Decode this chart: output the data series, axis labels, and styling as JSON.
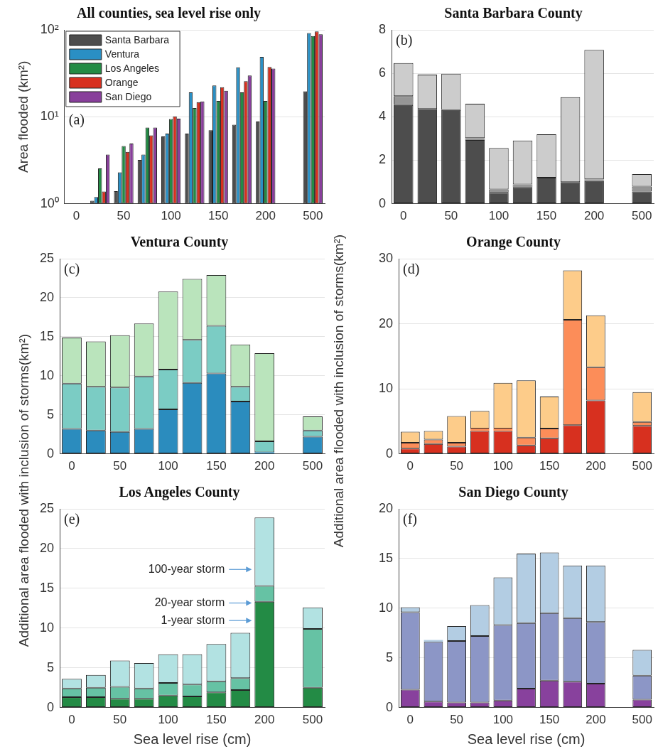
{
  "chart_data": [
    {
      "type": "bar",
      "title": "All counties, sea level rise only",
      "ylabel": "Area flooded (km²)",
      "categories": [
        "0",
        null,
        "50",
        null,
        "100",
        null,
        "150",
        null,
        "200",
        null,
        "500"
      ],
      "log": "y",
      "ylim": [
        1,
        100
      ],
      "yticks": [
        {
          "value": 1,
          "label": "10⁰"
        },
        {
          "value": 10,
          "label": "10¹"
        },
        {
          "value": 100,
          "label": "10²"
        }
      ],
      "grid": "y",
      "legend": "top left",
      "annotations": [
        "(a)"
      ],
      "series": [
        {
          "name": "Santa Barbara",
          "color": "#4d4d4d",
          "values": [
            null,
            1.08,
            1.39,
            3.19,
            5.95,
            6.4,
            7.0,
            8.1,
            8.8,
            null,
            19.6
          ]
        },
        {
          "name": "Ventura",
          "color": "#2a8fc4",
          "values": [
            null,
            1.19,
            2.29,
            3.67,
            6.4,
            19.1,
            22.9,
            37,
            49,
            null,
            92
          ]
        },
        {
          "name": "Los Angeles",
          "color": "#238b45",
          "values": [
            null,
            2.55,
            4.6,
            7.5,
            9.4,
            12.6,
            15.2,
            19.1,
            15.2,
            null,
            85
          ]
        },
        {
          "name": "Orange",
          "color": "#d7301f",
          "values": [
            null,
            1.38,
            3.95,
            6.1,
            10.1,
            14.7,
            21.9,
            25.7,
            37.4,
            null,
            96
          ]
        },
        {
          "name": "San Diego",
          "color": "#883f9b",
          "values": [
            null,
            3.67,
            4.92,
            7.5,
            9.5,
            15.0,
            19.9,
            29.9,
            35.8,
            null,
            89
          ]
        }
      ]
    },
    {
      "type": "bar",
      "title": "Santa Barbara County",
      "categories": [
        "0",
        null,
        "50",
        null,
        "100",
        null,
        "150",
        null,
        "200",
        null,
        "500"
      ],
      "stacked": true,
      "ylim": [
        0,
        8
      ],
      "yticks": [
        0,
        2,
        4,
        6,
        8
      ],
      "grid": "y",
      "annotations": [
        "(b)"
      ],
      "series": [
        {
          "color": "#4d4d4d",
          "values": [
            4.54,
            4.36,
            4.31,
            2.93,
            0.5,
            0.76,
            1.2,
            0.99,
            1.04,
            null,
            0.56
          ]
        },
        {
          "color": "#969696",
          "values": [
            0.41,
            0,
            0,
            0.09,
            0.16,
            0.13,
            0,
            0,
            0.08,
            null,
            0.23
          ]
        },
        {
          "color": "#cccccc",
          "values": [
            1.52,
            1.58,
            1.67,
            1.58,
            1.9,
            2.02,
            1.99,
            3.91,
            5.96,
            null,
            0.57
          ]
        }
      ]
    },
    {
      "type": "bar",
      "title": "Ventura County",
      "ylabel": "Additional area flooded with inclusion of storms(km²)",
      "categories": [
        "0",
        null,
        "50",
        null,
        "100",
        null,
        "150",
        null,
        "200",
        null,
        "500"
      ],
      "stacked": true,
      "ylim": [
        0,
        25
      ],
      "yticks": [
        0,
        5,
        10,
        15,
        20,
        25
      ],
      "grid": "y",
      "annotations": [
        "(c)"
      ],
      "series": [
        {
          "color": "#2b8cbe",
          "values": [
            3.2,
            3.0,
            2.8,
            3.2,
            5.7,
            9.1,
            10.3,
            6.7,
            0.2,
            null,
            2.2
          ]
        },
        {
          "color": "#7bccc4",
          "values": [
            5.8,
            5.6,
            5.7,
            6.7,
            5.1,
            5.5,
            6.1,
            1.9,
            1.4,
            null,
            0.8
          ]
        },
        {
          "color": "#bae4bc",
          "values": [
            5.9,
            5.8,
            6.7,
            6.8,
            10.0,
            7.8,
            6.5,
            5.4,
            11.3,
            null,
            1.8
          ]
        }
      ]
    },
    {
      "type": "bar",
      "title": "Orange County",
      "ylabel": "Additional area flooded with inclusion of storms(km²)",
      "categories": [
        "0",
        null,
        "50",
        null,
        "100",
        null,
        "150",
        null,
        "200",
        null,
        "500"
      ],
      "stacked": true,
      "ylim": [
        0,
        30
      ],
      "yticks": [
        0,
        10,
        20,
        30
      ],
      "grid": "y",
      "annotations": [
        "(d)"
      ],
      "series": [
        {
          "color": "#d7301f",
          "values": [
            0.8,
            1.5,
            1.1,
            3.5,
            3.5,
            1.3,
            2.4,
            4.4,
            8.2,
            null,
            4.3
          ]
        },
        {
          "color": "#fc8d59",
          "values": [
            0.9,
            0.7,
            0.6,
            0.4,
            0.4,
            1.2,
            1.5,
            16.2,
            5.1,
            null,
            0.6
          ]
        },
        {
          "color": "#fdcc8a",
          "values": [
            1.7,
            1.3,
            4.1,
            2.7,
            7.0,
            8.8,
            4.9,
            7.6,
            8.0,
            null,
            4.6
          ]
        }
      ]
    },
    {
      "type": "bar",
      "title": "Los Angeles County",
      "xlabel": "Sea level rise (cm)",
      "categories": [
        "0",
        null,
        "50",
        null,
        "100",
        null,
        "150",
        null,
        "200",
        null,
        "500"
      ],
      "stacked": true,
      "ylim": [
        0,
        25
      ],
      "yticks": [
        0,
        5,
        10,
        15,
        20,
        25
      ],
      "grid": "y",
      "annotations": [
        "(e)",
        "100-year storm",
        "20-year storm",
        "1-year storm"
      ],
      "series": [
        {
          "color": "#238b45",
          "values": [
            1.3,
            1.3,
            1.1,
            1.1,
            1.5,
            1.4,
            1.9,
            2.2,
            13.3,
            null,
            2.5
          ]
        },
        {
          "color": "#66c2a4",
          "values": [
            1.1,
            1.2,
            1.5,
            1.3,
            1.6,
            1.5,
            1.4,
            1.5,
            2.0,
            null,
            7.4
          ]
        },
        {
          "color": "#b2e2e2",
          "values": [
            1.2,
            1.6,
            3.3,
            3.2,
            3.6,
            3.8,
            4.7,
            5.7,
            8.6,
            null,
            2.7
          ]
        }
      ]
    },
    {
      "type": "bar",
      "title": "San Diego County",
      "xlabel": "Sea level rise (cm)",
      "categories": [
        "0",
        null,
        "50",
        null,
        "100",
        null,
        "150",
        null,
        "200",
        null,
        "500"
      ],
      "stacked": true,
      "ylim": [
        0,
        20
      ],
      "yticks": [
        0,
        5,
        10,
        15,
        20
      ],
      "grid": "y",
      "annotations": [
        "(f)"
      ],
      "series": [
        {
          "color": "#88419d",
          "values": [
            1.8,
            0.6,
            0.5,
            0.5,
            0.7,
            1.9,
            2.7,
            2.6,
            2.4,
            null,
            0.8
          ]
        },
        {
          "color": "#8c96c6",
          "values": [
            7.8,
            6.0,
            6.2,
            6.7,
            7.6,
            6.6,
            6.8,
            6.4,
            6.2,
            null,
            2.4
          ]
        },
        {
          "color": "#b3cde3",
          "values": [
            0.5,
            0.2,
            1.5,
            3.1,
            4.8,
            7.0,
            6.1,
            5.3,
            5.7,
            null,
            2.6
          ]
        }
      ]
    }
  ]
}
